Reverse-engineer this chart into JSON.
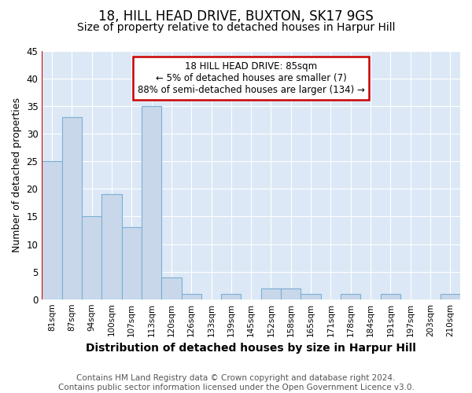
{
  "title": "18, HILL HEAD DRIVE, BUXTON, SK17 9GS",
  "subtitle": "Size of property relative to detached houses in Harpur Hill",
  "xlabel": "Distribution of detached houses by size in Harpur Hill",
  "ylabel": "Number of detached properties",
  "categories": [
    "81sqm",
    "87sqm",
    "94sqm",
    "100sqm",
    "107sqm",
    "113sqm",
    "120sqm",
    "126sqm",
    "133sqm",
    "139sqm",
    "145sqm",
    "152sqm",
    "158sqm",
    "165sqm",
    "171sqm",
    "178sqm",
    "184sqm",
    "191sqm",
    "197sqm",
    "203sqm",
    "210sqm"
  ],
  "values": [
    25,
    33,
    15,
    19,
    13,
    35,
    4,
    1,
    0,
    1,
    0,
    2,
    2,
    1,
    0,
    1,
    0,
    1,
    0,
    0,
    1
  ],
  "bar_color": "#c8d8ea",
  "bar_edge_color": "#7bafd4",
  "vline_color": "#cc0000",
  "annotation_title": "18 HILL HEAD DRIVE: 85sqm",
  "annotation_line1": "← 5% of detached houses are smaller (7)",
  "annotation_line2": "88% of semi-detached houses are larger (134) →",
  "annotation_box_color": "#ffffff",
  "annotation_border_color": "#cc0000",
  "ylim": [
    0,
    45
  ],
  "yticks": [
    0,
    5,
    10,
    15,
    20,
    25,
    30,
    35,
    40,
    45
  ],
  "fig_bg_color": "#ffffff",
  "plot_bg_color": "#dce8f5",
  "footer": "Contains HM Land Registry data © Crown copyright and database right 2024.\nContains public sector information licensed under the Open Government Licence v3.0.",
  "title_fontsize": 12,
  "subtitle_fontsize": 10,
  "xlabel_fontsize": 10,
  "ylabel_fontsize": 9,
  "footer_fontsize": 7.5
}
